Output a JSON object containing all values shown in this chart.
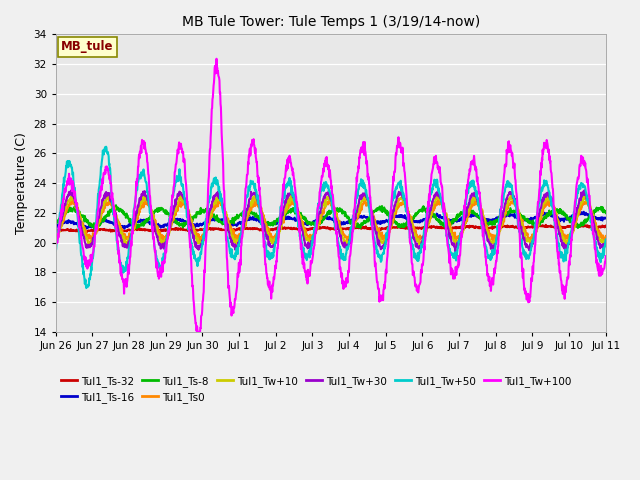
{
  "title": "MB Tule Tower: Tule Temps 1 (3/19/14-now)",
  "ylabel": "Temperature (C)",
  "ylim": [
    14,
    34
  ],
  "yticks": [
    14,
    16,
    18,
    20,
    22,
    24,
    26,
    28,
    30,
    32,
    34
  ],
  "fig_bg": "#f0f0f0",
  "plot_bg": "#e8e8e8",
  "legend_label": "MB_tule",
  "series_order": [
    "Tul1_Ts-32",
    "Tul1_Ts-16",
    "Tul1_Ts-8",
    "Tul1_Ts0",
    "Tul1_Tw+10",
    "Tul1_Tw+30",
    "Tul1_Tw+50",
    "Tul1_Tw+100"
  ],
  "series": {
    "Tul1_Ts-32": {
      "color": "#cc0000",
      "lw": 1.5
    },
    "Tul1_Ts-16": {
      "color": "#0000cc",
      "lw": 1.5
    },
    "Tul1_Ts-8": {
      "color": "#00bb00",
      "lw": 1.5
    },
    "Tul1_Ts0": {
      "color": "#ff8800",
      "lw": 1.5
    },
    "Tul1_Tw+10": {
      "color": "#cccc00",
      "lw": 1.5
    },
    "Tul1_Tw+30": {
      "color": "#9900cc",
      "lw": 1.5
    },
    "Tul1_Tw+50": {
      "color": "#00cccc",
      "lw": 1.5
    },
    "Tul1_Tw+100": {
      "color": "#ff00ff",
      "lw": 1.5
    }
  },
  "xtick_labels": [
    "Jun 26",
    "Jun 27",
    "Jun 28",
    "Jun 29",
    "Jun 30",
    "Jul 1",
    "Jul 2",
    "Jul 3",
    "Jul 4",
    "Jul 5",
    "Jul 6",
    "Jul 7",
    "Jul 8",
    "Jul 9",
    "Jul 10",
    "Jul 11"
  ],
  "n_days": 15,
  "n_points": 1500
}
